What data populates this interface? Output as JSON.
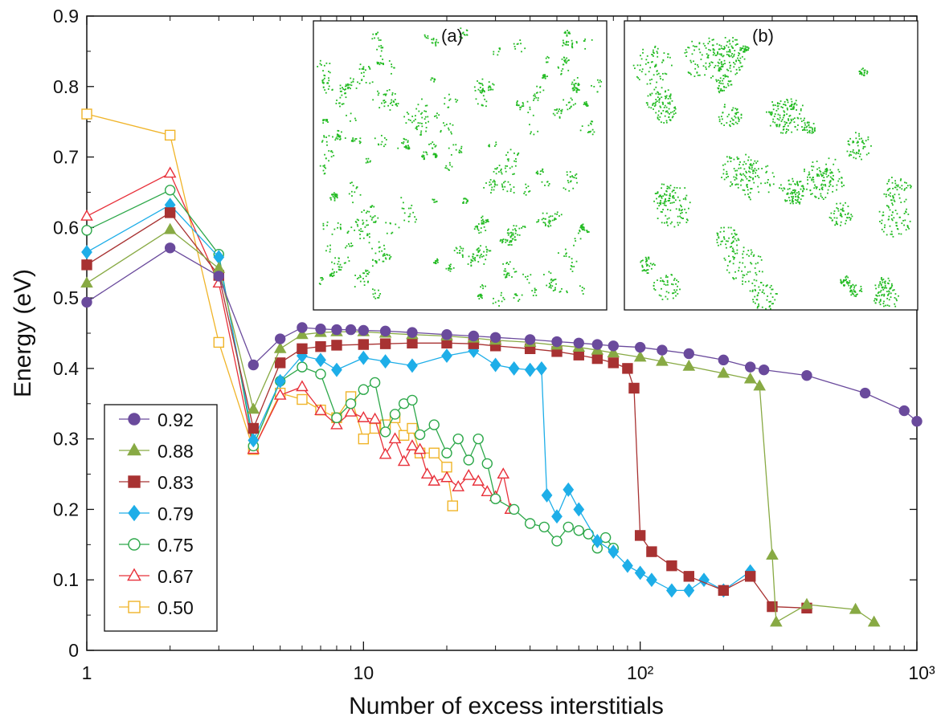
{
  "chart_data": {
    "type": "scatter",
    "xlabel": "Number of excess interstitials",
    "ylabel": "Energy (eV)",
    "xscale": "log",
    "xlim": [
      1,
      1000
    ],
    "ylim": [
      0,
      0.9
    ],
    "x_tick_labels": [
      "1",
      "10",
      "10²",
      "10³"
    ],
    "y_tick_labels": [
      "0",
      "0.1",
      "0.2",
      "0.3",
      "0.4",
      "0.5",
      "0.6",
      "0.7",
      "0.8",
      "0.9"
    ],
    "grid": false,
    "legend_position": "bottom-left",
    "insets": [
      {
        "label": "(a)",
        "description_color": "#22bb22"
      },
      {
        "label": "(b)",
        "description_color": "#22bb22"
      }
    ],
    "series": [
      {
        "name": "0.92",
        "color": "#6a4a9c",
        "marker": "circle",
        "filled": true,
        "points": [
          [
            1,
            0.494
          ],
          [
            2,
            0.571
          ],
          [
            3,
            0.531
          ],
          [
            4,
            0.405
          ],
          [
            5,
            0.442
          ],
          [
            6,
            0.458
          ],
          [
            7,
            0.456
          ],
          [
            8,
            0.455
          ],
          [
            9,
            0.455
          ],
          [
            10,
            0.454
          ],
          [
            12,
            0.453
          ],
          [
            15,
            0.451
          ],
          [
            20,
            0.448
          ],
          [
            25,
            0.446
          ],
          [
            30,
            0.444
          ],
          [
            40,
            0.441
          ],
          [
            50,
            0.438
          ],
          [
            60,
            0.436
          ],
          [
            70,
            0.434
          ],
          [
            80,
            0.432
          ],
          [
            100,
            0.43
          ],
          [
            120,
            0.426
          ],
          [
            150,
            0.421
          ],
          [
            200,
            0.412
          ],
          [
            250,
            0.402
          ],
          [
            280,
            0.398
          ],
          [
            400,
            0.39
          ],
          [
            650,
            0.365
          ],
          [
            900,
            0.34
          ],
          [
            1000,
            0.325
          ]
        ]
      },
      {
        "name": "0.88",
        "color": "#88aa44",
        "marker": "triangle",
        "filled": true,
        "points": [
          [
            1,
            0.521
          ],
          [
            2,
            0.597
          ],
          [
            3,
            0.542
          ],
          [
            4,
            0.342
          ],
          [
            5,
            0.428
          ],
          [
            6,
            0.448
          ],
          [
            7,
            0.451
          ],
          [
            8,
            0.452
          ],
          [
            10,
            0.452
          ],
          [
            12,
            0.45
          ],
          [
            15,
            0.448
          ],
          [
            20,
            0.446
          ],
          [
            25,
            0.443
          ],
          [
            30,
            0.44
          ],
          [
            40,
            0.437
          ],
          [
            50,
            0.433
          ],
          [
            60,
            0.43
          ],
          [
            70,
            0.426
          ],
          [
            80,
            0.422
          ],
          [
            100,
            0.416
          ],
          [
            120,
            0.41
          ],
          [
            150,
            0.403
          ],
          [
            200,
            0.393
          ],
          [
            250,
            0.385
          ],
          [
            270,
            0.375
          ],
          [
            300,
            0.135
          ],
          [
            310,
            0.04
          ],
          [
            400,
            0.065
          ],
          [
            600,
            0.058
          ],
          [
            700,
            0.04
          ]
        ]
      },
      {
        "name": "0.83",
        "color": "#a83232",
        "marker": "square",
        "filled": true,
        "points": [
          [
            1,
            0.547
          ],
          [
            2,
            0.621
          ],
          [
            3,
            0.532
          ],
          [
            4,
            0.315
          ],
          [
            5,
            0.408
          ],
          [
            6,
            0.428
          ],
          [
            7,
            0.431
          ],
          [
            8,
            0.433
          ],
          [
            10,
            0.434
          ],
          [
            12,
            0.435
          ],
          [
            15,
            0.436
          ],
          [
            20,
            0.436
          ],
          [
            25,
            0.435
          ],
          [
            30,
            0.432
          ],
          [
            40,
            0.428
          ],
          [
            50,
            0.424
          ],
          [
            60,
            0.419
          ],
          [
            70,
            0.414
          ],
          [
            80,
            0.408
          ],
          [
            90,
            0.4
          ],
          [
            95,
            0.372
          ],
          [
            100,
            0.163
          ],
          [
            110,
            0.14
          ],
          [
            130,
            0.12
          ],
          [
            150,
            0.105
          ],
          [
            200,
            0.085
          ],
          [
            250,
            0.105
          ],
          [
            300,
            0.062
          ],
          [
            400,
            0.06
          ]
        ]
      },
      {
        "name": "0.79",
        "color": "#1eaee8",
        "marker": "diamond",
        "filled": true,
        "points": [
          [
            1,
            0.565
          ],
          [
            2,
            0.632
          ],
          [
            3,
            0.558
          ],
          [
            4,
            0.298
          ],
          [
            5,
            0.382
          ],
          [
            6,
            0.418
          ],
          [
            7,
            0.412
          ],
          [
            8,
            0.398
          ],
          [
            10,
            0.415
          ],
          [
            12,
            0.41
          ],
          [
            15,
            0.404
          ],
          [
            20,
            0.418
          ],
          [
            25,
            0.425
          ],
          [
            30,
            0.405
          ],
          [
            35,
            0.4
          ],
          [
            40,
            0.398
          ],
          [
            44,
            0.4
          ],
          [
            46,
            0.22
          ],
          [
            50,
            0.19
          ],
          [
            55,
            0.228
          ],
          [
            60,
            0.2
          ],
          [
            70,
            0.155
          ],
          [
            80,
            0.14
          ],
          [
            90,
            0.12
          ],
          [
            100,
            0.11
          ],
          [
            110,
            0.1
          ],
          [
            130,
            0.085
          ],
          [
            150,
            0.085
          ],
          [
            170,
            0.1
          ],
          [
            200,
            0.085
          ],
          [
            250,
            0.112
          ]
        ]
      },
      {
        "name": "0.75",
        "color": "#2da84a",
        "marker": "circle",
        "filled": false,
        "points": [
          [
            1,
            0.596
          ],
          [
            2,
            0.653
          ],
          [
            3,
            0.562
          ],
          [
            4,
            0.29
          ],
          [
            5,
            0.382
          ],
          [
            6,
            0.402
          ],
          [
            7,
            0.392
          ],
          [
            8,
            0.33
          ],
          [
            9,
            0.35
          ],
          [
            10,
            0.37
          ],
          [
            11,
            0.38
          ],
          [
            12,
            0.31
          ],
          [
            13,
            0.335
          ],
          [
            14,
            0.35
          ],
          [
            15,
            0.355
          ],
          [
            16,
            0.306
          ],
          [
            18,
            0.32
          ],
          [
            20,
            0.28
          ],
          [
            22,
            0.3
          ],
          [
            24,
            0.27
          ],
          [
            26,
            0.3
          ],
          [
            28,
            0.265
          ],
          [
            30,
            0.215
          ],
          [
            35,
            0.2
          ],
          [
            40,
            0.18
          ],
          [
            45,
            0.175
          ],
          [
            50,
            0.155
          ],
          [
            55,
            0.175
          ],
          [
            60,
            0.17
          ],
          [
            65,
            0.165
          ],
          [
            70,
            0.145
          ],
          [
            75,
            0.16
          ],
          [
            80,
            0.145
          ]
        ]
      },
      {
        "name": "0.67",
        "color": "#e8303a",
        "marker": "triangle",
        "filled": false,
        "points": [
          [
            1,
            0.616
          ],
          [
            2,
            0.677
          ],
          [
            3,
            0.521
          ],
          [
            4,
            0.285
          ],
          [
            5,
            0.362
          ],
          [
            6,
            0.374
          ],
          [
            7,
            0.34
          ],
          [
            8,
            0.32
          ],
          [
            9,
            0.338
          ],
          [
            10,
            0.33
          ],
          [
            11,
            0.328
          ],
          [
            12,
            0.278
          ],
          [
            13,
            0.3
          ],
          [
            14,
            0.268
          ],
          [
            15,
            0.29
          ],
          [
            16,
            0.285
          ],
          [
            17,
            0.25
          ],
          [
            18,
            0.24
          ],
          [
            20,
            0.245
          ],
          [
            22,
            0.232
          ],
          [
            24,
            0.248
          ],
          [
            26,
            0.24
          ],
          [
            28,
            0.225
          ],
          [
            30,
            0.218
          ],
          [
            32,
            0.25
          ],
          [
            34,
            0.2
          ]
        ]
      },
      {
        "name": "0.50",
        "color": "#f0b429",
        "marker": "square",
        "filled": false,
        "points": [
          [
            1,
            0.761
          ],
          [
            2,
            0.731
          ],
          [
            3,
            0.437
          ],
          [
            4,
            0.285
          ],
          [
            5,
            0.365
          ],
          [
            6,
            0.356
          ],
          [
            7,
            0.341
          ],
          [
            8,
            0.33
          ],
          [
            9,
            0.36
          ],
          [
            10,
            0.3
          ],
          [
            11,
            0.315
          ],
          [
            12,
            0.32
          ],
          [
            13,
            0.33
          ],
          [
            14,
            0.305
          ],
          [
            15,
            0.315
          ],
          [
            16,
            0.28
          ],
          [
            18,
            0.28
          ],
          [
            20,
            0.26
          ],
          [
            21,
            0.205
          ]
        ]
      }
    ]
  }
}
